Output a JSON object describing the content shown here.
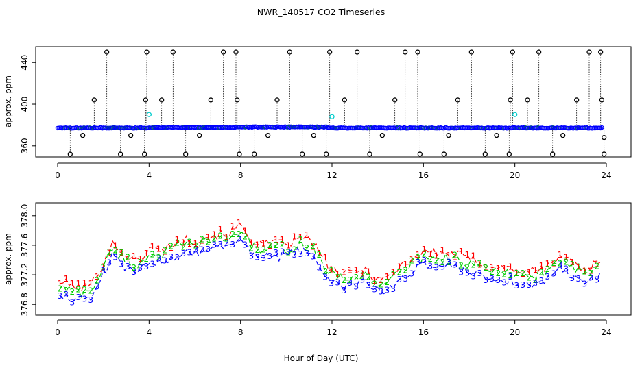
{
  "chart_data": [
    {
      "type": "scatter",
      "title": "NWR_140517  CO2 Timeseries",
      "ylabel": "approx. ppm",
      "xlabel": "",
      "xlim": [
        0,
        24
      ],
      "ylim": [
        350,
        452
      ],
      "xticks": [
        "0",
        "4",
        "8",
        "12",
        "16",
        "20",
        "24"
      ],
      "yticks": [
        "360",
        "400",
        "440"
      ],
      "baseline_ppm": 377.2,
      "outlier_high_ppm": 450,
      "outlier_mid_ppm": 404,
      "outlier_low_ppm": 352,
      "outlier_hours": [
        {
          "x": 0.55,
          "y": 352
        },
        {
          "x": 1.6,
          "y": 404
        },
        {
          "x": 2.15,
          "y": 450
        },
        {
          "x": 2.75,
          "y": 352
        },
        {
          "x": 3.8,
          "y": 352
        },
        {
          "x": 3.85,
          "y": 404
        },
        {
          "x": 3.9,
          "y": 450
        },
        {
          "x": 4.55,
          "y": 404
        },
        {
          "x": 5.05,
          "y": 450
        },
        {
          "x": 5.6,
          "y": 352
        },
        {
          "x": 6.7,
          "y": 404
        },
        {
          "x": 7.25,
          "y": 450
        },
        {
          "x": 7.8,
          "y": 450
        },
        {
          "x": 7.85,
          "y": 404
        },
        {
          "x": 7.95,
          "y": 352
        },
        {
          "x": 8.6,
          "y": 352
        },
        {
          "x": 9.6,
          "y": 404
        },
        {
          "x": 10.15,
          "y": 450
        },
        {
          "x": 10.7,
          "y": 352
        },
        {
          "x": 11.75,
          "y": 352
        },
        {
          "x": 11.9,
          "y": 450
        },
        {
          "x": 12.55,
          "y": 404
        },
        {
          "x": 13.1,
          "y": 450
        },
        {
          "x": 13.65,
          "y": 352
        },
        {
          "x": 14.75,
          "y": 404
        },
        {
          "x": 15.2,
          "y": 450
        },
        {
          "x": 15.75,
          "y": 450
        },
        {
          "x": 15.85,
          "y": 352
        },
        {
          "x": 16.9,
          "y": 352
        },
        {
          "x": 17.5,
          "y": 404
        },
        {
          "x": 18.1,
          "y": 450
        },
        {
          "x": 18.7,
          "y": 352
        },
        {
          "x": 19.75,
          "y": 352
        },
        {
          "x": 19.8,
          "y": 404
        },
        {
          "x": 19.9,
          "y": 450
        },
        {
          "x": 20.55,
          "y": 404
        },
        {
          "x": 21.05,
          "y": 450
        },
        {
          "x": 21.65,
          "y": 352
        },
        {
          "x": 22.7,
          "y": 404
        },
        {
          "x": 23.25,
          "y": 450
        },
        {
          "x": 23.75,
          "y": 450
        },
        {
          "x": 23.8,
          "y": 404
        },
        {
          "x": 23.9,
          "y": 352
        }
      ],
      "low_markers": [
        {
          "x": 1.1,
          "y": 370
        },
        {
          "x": 3.2,
          "y": 370
        },
        {
          "x": 6.2,
          "y": 370
        },
        {
          "x": 9.2,
          "y": 370
        },
        {
          "x": 11.2,
          "y": 370
        },
        {
          "x": 14.2,
          "y": 370
        },
        {
          "x": 17.1,
          "y": 370
        },
        {
          "x": 19.2,
          "y": 370
        },
        {
          "x": 22.1,
          "y": 370
        },
        {
          "x": 23.9,
          "y": 368
        }
      ],
      "cyan_markers": [
        {
          "x": 4.0,
          "y": 390
        },
        {
          "x": 12.0,
          "y": 388
        },
        {
          "x": 20.0,
          "y": 390
        }
      ]
    },
    {
      "type": "scatter",
      "ylabel": "approx. ppm",
      "xlabel": "Hour of Day (UTC)",
      "xlim": [
        0,
        24
      ],
      "ylim": [
        376.7,
        378.1
      ],
      "xticks": [
        "0",
        "4",
        "8",
        "12",
        "16",
        "20",
        "24"
      ],
      "yticks": [
        "376.8",
        "377.2",
        "377.6",
        "378.0"
      ],
      "series": [
        {
          "name": "1",
          "color": "#ff0000",
          "offset": 0.12
        },
        {
          "name": "2",
          "color": "#00cc00",
          "offset": 0.05
        },
        {
          "name": "3",
          "color": "#0000ff",
          "offset": -0.05
        }
      ],
      "trend": [
        {
          "x": 0.0,
          "y": 377.0
        },
        {
          "x": 0.5,
          "y": 376.95
        },
        {
          "x": 1.0,
          "y": 376.9
        },
        {
          "x": 1.5,
          "y": 376.95
        },
        {
          "x": 2.0,
          "y": 377.25
        },
        {
          "x": 2.4,
          "y": 377.5
        },
        {
          "x": 3.0,
          "y": 377.35
        },
        {
          "x": 3.5,
          "y": 377.25
        },
        {
          "x": 4.0,
          "y": 377.45
        },
        {
          "x": 4.5,
          "y": 377.4
        },
        {
          "x": 5.0,
          "y": 377.5
        },
        {
          "x": 5.5,
          "y": 377.55
        },
        {
          "x": 6.0,
          "y": 377.55
        },
        {
          "x": 6.5,
          "y": 377.6
        },
        {
          "x": 7.0,
          "y": 377.62
        },
        {
          "x": 7.5,
          "y": 377.65
        },
        {
          "x": 8.0,
          "y": 377.75
        },
        {
          "x": 8.5,
          "y": 377.55
        },
        {
          "x": 9.0,
          "y": 377.48
        },
        {
          "x": 9.5,
          "y": 377.5
        },
        {
          "x": 10.0,
          "y": 377.5
        },
        {
          "x": 10.5,
          "y": 377.55
        },
        {
          "x": 11.0,
          "y": 377.58
        },
        {
          "x": 11.3,
          "y": 377.45
        },
        {
          "x": 11.7,
          "y": 377.25
        },
        {
          "x": 12.0,
          "y": 377.15
        },
        {
          "x": 12.5,
          "y": 377.08
        },
        {
          "x": 13.0,
          "y": 377.12
        },
        {
          "x": 13.5,
          "y": 377.15
        },
        {
          "x": 14.0,
          "y": 377.02
        },
        {
          "x": 14.5,
          "y": 377.05
        },
        {
          "x": 15.0,
          "y": 377.2
        },
        {
          "x": 15.5,
          "y": 377.3
        },
        {
          "x": 16.0,
          "y": 377.4
        },
        {
          "x": 16.5,
          "y": 377.38
        },
        {
          "x": 17.0,
          "y": 377.38
        },
        {
          "x": 17.5,
          "y": 377.35
        },
        {
          "x": 18.0,
          "y": 377.3
        },
        {
          "x": 18.5,
          "y": 377.25
        },
        {
          "x": 19.0,
          "y": 377.2
        },
        {
          "x": 19.5,
          "y": 377.18
        },
        {
          "x": 20.0,
          "y": 377.15
        },
        {
          "x": 20.5,
          "y": 377.1
        },
        {
          "x": 21.0,
          "y": 377.15
        },
        {
          "x": 21.5,
          "y": 377.2
        },
        {
          "x": 22.0,
          "y": 377.35
        },
        {
          "x": 22.5,
          "y": 377.25
        },
        {
          "x": 23.0,
          "y": 377.15
        },
        {
          "x": 23.5,
          "y": 377.22
        },
        {
          "x": 23.8,
          "y": 377.28
        }
      ]
    }
  ]
}
